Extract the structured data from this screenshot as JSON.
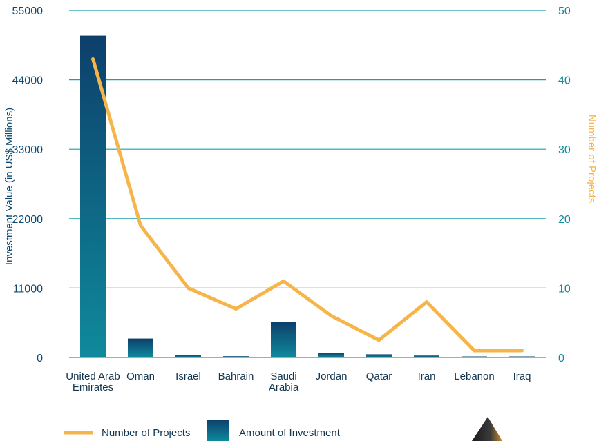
{
  "chart_data": {
    "type": "bar",
    "categories": [
      [
        "United Arab",
        "Emirates"
      ],
      [
        "Oman"
      ],
      [
        "Israel"
      ],
      [
        "Bahrain"
      ],
      [
        "Saudi",
        "Arabia"
      ],
      [
        "Jordan"
      ],
      [
        "Qatar"
      ],
      [
        "Iran"
      ],
      [
        "Lebanon"
      ],
      [
        "Iraq"
      ]
    ],
    "series": [
      {
        "name": "Amount of Investment",
        "type": "bar",
        "axis": "left",
        "values": [
          51000,
          3000,
          400,
          200,
          5600,
          750,
          500,
          300,
          80,
          60
        ]
      },
      {
        "name": "Number of Projects",
        "type": "line",
        "axis": "right",
        "values": [
          43,
          19,
          10,
          7,
          11,
          6,
          2.5,
          8,
          1,
          1
        ]
      }
    ],
    "ylabel_left": "Investment Value (in US$ Millions)",
    "ylabel_right": "Number of Projects",
    "ylim_left": [
      0,
      55000
    ],
    "ylim_right": [
      0,
      50
    ],
    "yticks_left": [
      0,
      11000,
      22000,
      33000,
      44000,
      55000
    ],
    "yticks_right": [
      0,
      10,
      20,
      30,
      40,
      50
    ],
    "grid": true,
    "legend_position": "bottom-left",
    "colors": {
      "bar_top": "#0d3f6b",
      "bar_bottom": "#0f8a9c",
      "line": "#f6b54a",
      "grid": "#1a9fb0",
      "left_axis_text": "#0d4a73",
      "right_axis_text": "#13899a"
    }
  }
}
